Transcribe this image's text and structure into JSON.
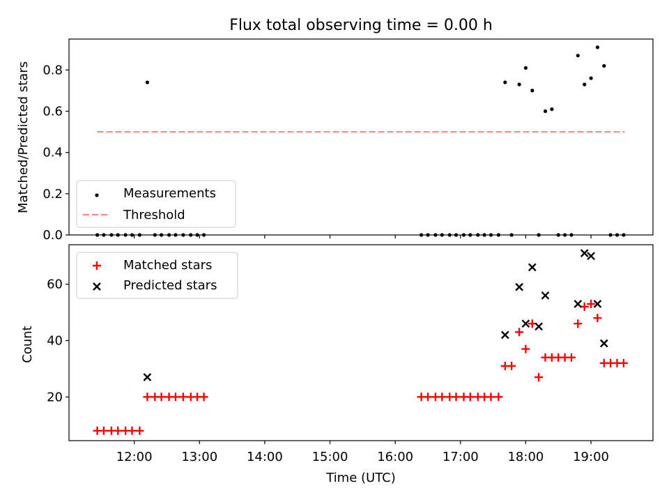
{
  "chart_data": [
    {
      "type": "scatter",
      "title": "Flux total observing time = 0.00 h",
      "ylabel": "Matched/Predicted stars",
      "xlabel": "",
      "xlim": [
        "11:00",
        "19:57"
      ],
      "ylim": [
        0,
        0.95
      ],
      "yticks": [
        "0.0",
        "0.2",
        "0.4",
        "0.6",
        "0.8"
      ],
      "legend": {
        "placement": "lower-left",
        "entries": [
          "Measurements",
          "Threshold"
        ]
      },
      "threshold": {
        "name": "Threshold",
        "value": 0.5,
        "x_start": "11:26",
        "x_end": "19:31",
        "color": "#ff7f7f"
      },
      "series": [
        {
          "name": "Measurements",
          "color": "#000000",
          "x": [
            "11:26",
            "11:32",
            "11:39",
            "11:45",
            "11:52",
            "11:58",
            "12:05",
            "12:12",
            "12:19",
            "12:25",
            "12:32",
            "12:38",
            "12:45",
            "12:52",
            "12:58",
            "13:04",
            "16:24",
            "16:30",
            "16:37",
            "16:43",
            "16:50",
            "16:56",
            "17:03",
            "17:09",
            "17:16",
            "17:22",
            "17:28",
            "17:35",
            "17:41",
            "17:47",
            "17:54",
            "18:00",
            "18:06",
            "18:12",
            "18:18",
            "18:24",
            "18:30",
            "18:36",
            "18:42",
            "18:48",
            "18:54",
            "19:00",
            "19:06",
            "19:12",
            "19:18",
            "19:24",
            "19:30"
          ],
          "y": [
            0,
            0,
            0,
            0,
            0,
            0,
            0,
            0.74,
            0,
            0,
            0,
            0,
            0,
            0,
            0,
            0,
            0,
            0,
            0,
            0,
            0,
            0,
            0,
            0,
            0,
            0,
            0,
            0,
            0.74,
            0,
            0.73,
            0.81,
            0.7,
            0,
            0.6,
            0.61,
            0,
            0,
            0,
            0.87,
            0.73,
            0.76,
            0.91,
            0.82,
            0,
            0,
            0
          ]
        }
      ]
    },
    {
      "type": "scatter",
      "title": "",
      "xlabel": "Time (UTC)",
      "ylabel": "Count",
      "xlim": [
        "11:00",
        "19:57"
      ],
      "ylim": [
        4.5,
        74
      ],
      "xticks": [
        "12:00",
        "13:00",
        "14:00",
        "15:00",
        "16:00",
        "17:00",
        "18:00",
        "19:00"
      ],
      "yticks": [
        "20",
        "40",
        "60"
      ],
      "legend": {
        "placement": "upper-left",
        "entries": [
          "Matched stars",
          "Predicted stars"
        ]
      },
      "series": [
        {
          "name": "Matched stars",
          "marker": "+",
          "color": "#ff0000",
          "x": [
            "11:26",
            "11:32",
            "11:39",
            "11:45",
            "11:52",
            "11:58",
            "12:05",
            "12:12",
            "12:19",
            "12:25",
            "12:32",
            "12:38",
            "12:45",
            "12:52",
            "12:58",
            "13:04",
            "16:24",
            "16:30",
            "16:37",
            "16:43",
            "16:50",
            "16:56",
            "17:03",
            "17:09",
            "17:16",
            "17:22",
            "17:28",
            "17:35",
            "17:41",
            "17:47",
            "17:54",
            "18:00",
            "18:06",
            "18:12",
            "18:18",
            "18:24",
            "18:30",
            "18:36",
            "18:42",
            "18:48",
            "18:54",
            "19:00",
            "19:06",
            "19:12",
            "19:18",
            "19:24",
            "19:30"
          ],
          "y": [
            8,
            8,
            8,
            8,
            8,
            8,
            8,
            20,
            20,
            20,
            20,
            20,
            20,
            20,
            20,
            20,
            20,
            20,
            20,
            20,
            20,
            20,
            20,
            20,
            20,
            20,
            20,
            20,
            31,
            31,
            43,
            37,
            46,
            27,
            34,
            34,
            34,
            34,
            34,
            46,
            52,
            53,
            48,
            32,
            32,
            32,
            32
          ]
        },
        {
          "name": "Predicted stars",
          "marker": "x",
          "color": "#000000",
          "x": [
            "12:12",
            "17:41",
            "17:54",
            "18:00",
            "18:06",
            "18:12",
            "18:18",
            "18:48",
            "18:54",
            "19:00",
            "19:06",
            "19:12"
          ],
          "y": [
            27,
            42,
            59,
            46,
            66,
            45,
            56,
            53,
            71,
            70,
            53,
            39
          ]
        }
      ]
    }
  ]
}
